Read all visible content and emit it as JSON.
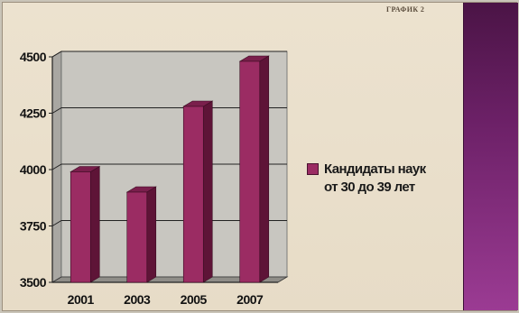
{
  "title": "ГРАФИК 2",
  "legend_label": "Кандидаты наук\nот 30 до 39 лет",
  "colors": {
    "bar_front": "#9b2c63",
    "bar_side": "#5e1437",
    "bar_top": "#7a1f4c",
    "plot_back": "#c8c6c0",
    "plot_side_wall": "#a9a7a2",
    "side_panel_top": "#4b1446",
    "side_panel_bottom": "#9b3b93"
  },
  "chart_data": {
    "type": "bar",
    "categories": [
      "2001",
      "2003",
      "2005",
      "2007"
    ],
    "series": [
      {
        "name": "Кандидаты наук от 30 до 39 лет",
        "values": [
          3990,
          3900,
          4280,
          4480
        ]
      }
    ],
    "ylim": [
      3500,
      4500
    ],
    "yticks": [
      3500,
      3750,
      4000,
      4250,
      4500
    ],
    "grid": true,
    "legend_position": "right",
    "style": "3d"
  }
}
